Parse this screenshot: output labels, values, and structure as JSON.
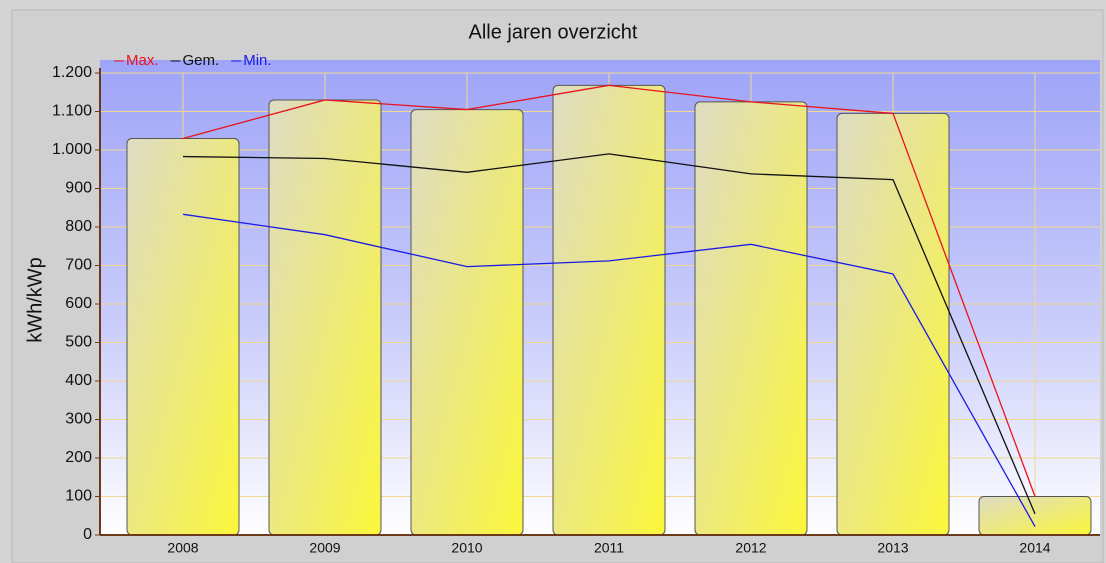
{
  "chart_data": {
    "type": "bar",
    "title": "Alle jaren overzicht",
    "y_label": "kWh/kWp",
    "categories": [
      "2008",
      "2009",
      "2010",
      "2011",
      "2012",
      "2013",
      "2014"
    ],
    "series": [
      {
        "type": "bar",
        "color": "#f5f040",
        "values": [
          1030,
          1130,
          1105,
          1168,
          1125,
          1095,
          100
        ]
      },
      {
        "type": "line",
        "name": "Max.",
        "color": "#e8141c",
        "values": [
          1030,
          1130,
          1105,
          1168,
          1125,
          1095,
          100
        ]
      },
      {
        "type": "line",
        "name": "Gem.",
        "color": "#111111",
        "values": [
          983,
          978,
          942,
          990,
          938,
          923,
          55
        ]
      },
      {
        "type": "line",
        "name": "Min.",
        "color": "#1a1ae6",
        "values": [
          833,
          780,
          697,
          712,
          755,
          678,
          22
        ]
      }
    ],
    "ylim": [
      0,
      1200
    ],
    "yticks": [
      0,
      100,
      200,
      300,
      400,
      500,
      600,
      700,
      800,
      900,
      {
        "value": 1000,
        "label": "1.000"
      },
      {
        "value": 1100,
        "label": "1.100"
      },
      {
        "value": 1200,
        "label": "1.200"
      }
    ],
    "grid": true
  }
}
